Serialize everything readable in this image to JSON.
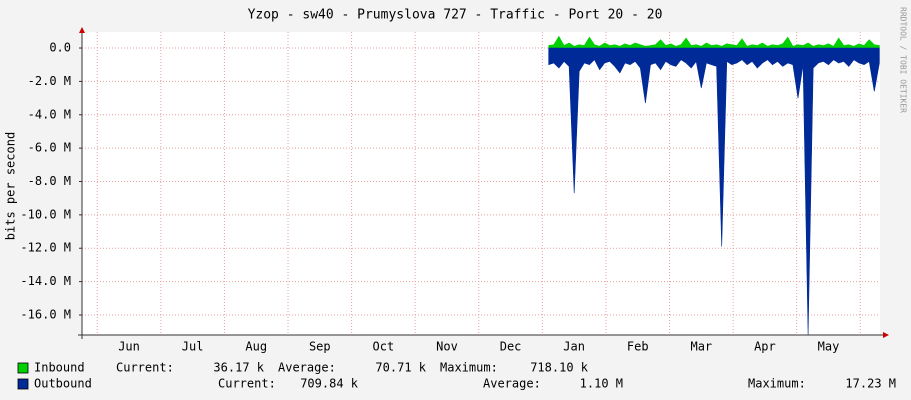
{
  "chart_data": {
    "type": "area",
    "title": "Yzop - sw40 - Prumyslova 727 - Traffic - Port 20 - 20",
    "y_label": "bits per second",
    "side_label": "RRDTOOL / TOBI OETIKER",
    "categories": [
      "Jun",
      "Jul",
      "Aug",
      "Sep",
      "Oct",
      "Nov",
      "Dec",
      "Jan",
      "Feb",
      "Mar",
      "Apr",
      "May"
    ],
    "xlim": [
      -0.24,
      12.31
    ],
    "ylim": [
      -17200000,
      960000
    ],
    "yticks": [
      {
        "value": 0,
        "label": "0.0"
      },
      {
        "value": -2000000,
        "label": "-2.0 M"
      },
      {
        "value": -4000000,
        "label": "-4.0 M"
      },
      {
        "value": -6000000,
        "label": "-6.0 M"
      },
      {
        "value": -8000000,
        "label": "-8.0 M"
      },
      {
        "value": -10000000,
        "label": "-10.0 M"
      },
      {
        "value": -12000000,
        "label": "-12.0 M"
      },
      {
        "value": -14000000,
        "label": "-14.0 M"
      },
      {
        "value": -16000000,
        "label": "-16.0 M"
      }
    ],
    "grid": true,
    "x": [
      7.1,
      7.18,
      7.26,
      7.34,
      7.42,
      7.5,
      7.58,
      7.66,
      7.74,
      7.82,
      7.9,
      7.98,
      8.06,
      8.14,
      8.22,
      8.3,
      8.38,
      8.46,
      8.54,
      8.62,
      8.7,
      8.78,
      8.86,
      8.94,
      9.02,
      9.1,
      9.18,
      9.26,
      9.34,
      9.42,
      9.5,
      9.58,
      9.66,
      9.74,
      9.82,
      9.9,
      9.98,
      10.06,
      10.14,
      10.22,
      10.3,
      10.38,
      10.46,
      10.54,
      10.62,
      10.7,
      10.78,
      10.86,
      10.94,
      11.02,
      11.1,
      11.18,
      11.26,
      11.34,
      11.42,
      11.5,
      11.58,
      11.66,
      11.74,
      11.82,
      11.9,
      11.98,
      12.06,
      12.14,
      12.22,
      12.3
    ],
    "series": [
      {
        "name": "Inbound",
        "color": "#00cf00",
        "values": [
          150000,
          200000,
          700000,
          150000,
          300000,
          100000,
          200000,
          150000,
          650000,
          200000,
          100000,
          300000,
          150000,
          200000,
          100000,
          250000,
          150000,
          300000,
          200000,
          100000,
          150000,
          200000,
          500000,
          150000,
          250000,
          100000,
          200000,
          600000,
          150000,
          200000,
          100000,
          300000,
          150000,
          200000,
          100000,
          250000,
          200000,
          150000,
          550000,
          100000,
          200000,
          150000,
          300000,
          100000,
          200000,
          150000,
          250000,
          650000,
          100000,
          200000,
          150000,
          300000,
          100000,
          200000,
          150000,
          250000,
          100000,
          600000,
          150000,
          200000,
          100000,
          250000,
          150000,
          500000,
          200000,
          150000
        ],
        "stats": [
          {
            "label": "Current:",
            "value": "36.17 k"
          },
          {
            "label": "Average:",
            "value": "70.71 k"
          },
          {
            "label": "Maximum:",
            "value": "718.10 k"
          }
        ]
      },
      {
        "name": "Outbound",
        "color": "#002a97",
        "values": [
          -1000000,
          -900000,
          -1200000,
          -800000,
          -1100000,
          -8700000,
          -1400000,
          -900000,
          -1000000,
          -700000,
          -1300000,
          -900000,
          -800000,
          -1100000,
          -1500000,
          -900000,
          -1000000,
          -800000,
          -1200000,
          -3300000,
          -1000000,
          -900000,
          -1300000,
          -800000,
          -1000000,
          -1100000,
          -700000,
          -900000,
          -1200000,
          -800000,
          -2400000,
          -900000,
          -1000000,
          -1100000,
          -11900000,
          -800000,
          -1000000,
          -900000,
          -700000,
          -1000000,
          -800000,
          -1200000,
          -900000,
          -700000,
          -1000000,
          -800000,
          -1100000,
          -900000,
          -1000000,
          -3000000,
          -1000000,
          -17200000,
          -1200000,
          -900000,
          -800000,
          -1000000,
          -700000,
          -900000,
          -800000,
          -1100000,
          -700000,
          -900000,
          -1000000,
          -800000,
          -2600000,
          -900000
        ],
        "stats": [
          {
            "label": "Current:",
            "value": "709.84 k"
          },
          {
            "label": "Average:",
            "value": "1.10 M"
          },
          {
            "label": "Maximum:",
            "value": "17.23 M"
          }
        ]
      }
    ]
  }
}
